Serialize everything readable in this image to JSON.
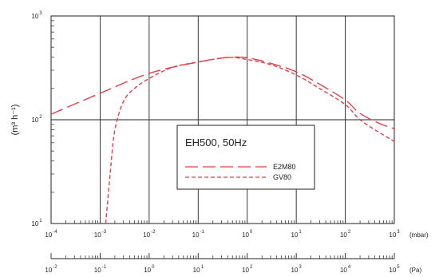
{
  "chart_data": {
    "type": "line",
    "title": "",
    "ylabel": "(m³ h⁻¹)",
    "x_scale": "log",
    "y_scale": "log",
    "xlim_mbar": [
      0.0001,
      1000
    ],
    "ylim": [
      10,
      1000
    ],
    "grid": true,
    "y_ticks": [
      {
        "base": "10",
        "exp": "1",
        "value": 10
      },
      {
        "base": "10",
        "exp": "2",
        "value": 100
      },
      {
        "base": "10",
        "exp": "3",
        "value": 1000
      }
    ],
    "x_axis_mbar": {
      "unit": "(mbar)",
      "ticks": [
        {
          "base": "10",
          "exp": "-4",
          "value": 0.0001
        },
        {
          "base": "10",
          "exp": "-3",
          "value": 0.001
        },
        {
          "base": "10",
          "exp": "-2",
          "value": 0.01
        },
        {
          "base": "10",
          "exp": "-1",
          "value": 0.1
        },
        {
          "base": "10",
          "exp": "0",
          "value": 1
        },
        {
          "base": "10",
          "exp": "1",
          "value": 10
        },
        {
          "base": "10",
          "exp": "2",
          "value": 100
        },
        {
          "base": "10",
          "exp": "3",
          "value": 1000
        }
      ]
    },
    "x_axis_pa": {
      "unit": "(Pa)",
      "ticks": [
        {
          "base": "10",
          "exp": "-2",
          "value": 0.01
        },
        {
          "base": "10",
          "exp": "-1",
          "value": 0.1
        },
        {
          "base": "10",
          "exp": "0",
          "value": 1
        },
        {
          "base": "10",
          "exp": "1",
          "value": 10
        },
        {
          "base": "10",
          "exp": "2",
          "value": 100
        },
        {
          "base": "10",
          "exp": "3",
          "value": 1000
        },
        {
          "base": "10",
          "exp": "4",
          "value": 10000
        },
        {
          "base": "10",
          "exp": "5",
          "value": 100000
        }
      ]
    },
    "legend": {
      "title": "EH500, 50Hz",
      "placement": "center"
    },
    "series": [
      {
        "name": "E2M80",
        "style": "long-dash",
        "color": "#e0404a",
        "points": [
          [
            0.0001,
            113
          ],
          [
            0.001,
            180
          ],
          [
            0.01,
            280
          ],
          [
            0.1,
            360
          ],
          [
            0.4,
            398
          ],
          [
            1,
            395
          ],
          [
            3,
            350
          ],
          [
            10,
            290
          ],
          [
            30,
            220
          ],
          [
            100,
            155
          ],
          [
            200,
            115
          ],
          [
            500,
            92
          ],
          [
            1000,
            82
          ]
        ]
      },
      {
        "name": "GV80",
        "style": "short-dash",
        "color": "#e0404a",
        "points": [
          [
            0.0013,
            10
          ],
          [
            0.0016,
            30
          ],
          [
            0.002,
            80
          ],
          [
            0.003,
            150
          ],
          [
            0.005,
            200
          ],
          [
            0.01,
            250
          ],
          [
            0.03,
            320
          ],
          [
            0.1,
            360
          ],
          [
            0.4,
            398
          ],
          [
            1,
            380
          ],
          [
            3,
            340
          ],
          [
            10,
            270
          ],
          [
            30,
            200
          ],
          [
            100,
            140
          ],
          [
            200,
            100
          ],
          [
            500,
            75
          ],
          [
            1000,
            62
          ]
        ]
      }
    ]
  }
}
